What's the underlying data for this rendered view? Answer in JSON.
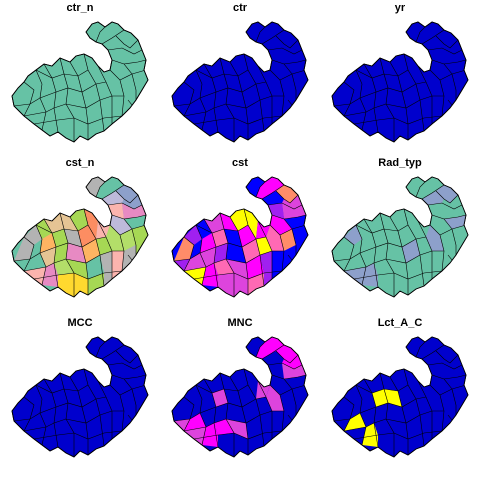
{
  "chart_data": {
    "type": "map",
    "layout": "3x3 small multiples",
    "panels": [
      {
        "title": "ctr_n",
        "fill_mode": "solid",
        "colors": [
          "#66c2a5"
        ]
      },
      {
        "title": "ctr",
        "fill_mode": "solid",
        "colors": [
          "#0000cd"
        ]
      },
      {
        "title": "yr",
        "fill_mode": "solid",
        "colors": [
          "#0000cd"
        ]
      },
      {
        "title": "cst_n",
        "fill_mode": "categorical",
        "colors": [
          "#66c2a5",
          "#fc8d62",
          "#8da0cb",
          "#e78ac3",
          "#a6d854",
          "#ffd92f",
          "#e5c494",
          "#b3b3b3",
          "#fbb4ae",
          "#b3de69",
          "#fdb462",
          "#bebada"
        ]
      },
      {
        "title": "cst",
        "fill_mode": "categorical",
        "colors": [
          "#0000ff",
          "#ff00ff",
          "#ffff00",
          "#ff69b4",
          "#ff8c69",
          "#a020f0",
          "#dd44dd"
        ]
      },
      {
        "title": "Rad_typ",
        "fill_mode": "categorical",
        "colors": [
          "#66c2a5",
          "#8da0cb"
        ]
      },
      {
        "title": "MCC",
        "fill_mode": "solid",
        "colors": [
          "#0000cd"
        ]
      },
      {
        "title": "MNC",
        "fill_mode": "categorical",
        "colors": [
          "#0000cd",
          "#dd44dd",
          "#ff00ff",
          "#ffff00"
        ]
      },
      {
        "title": "Lct_A_C",
        "fill_mode": "categorical",
        "colors": [
          "#0000cd",
          "#ffff00",
          "#a020f0"
        ]
      }
    ],
    "border_color": "#000000"
  }
}
